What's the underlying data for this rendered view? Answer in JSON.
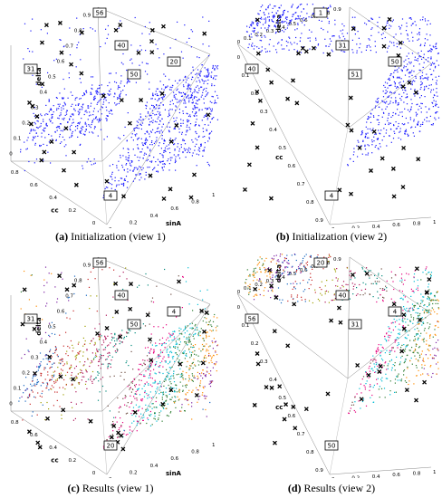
{
  "chart_data": [
    {
      "type": "scatter",
      "panel": "a",
      "caption_letter": "(a)",
      "caption_text": " Initialization (view 1)",
      "xlabel": "cc",
      "ylabel": "delta",
      "zlabel": "sinA",
      "axis_range": [
        0,
        1
      ],
      "x_ticks": [
        "0.8",
        "0.6",
        "0.4",
        "0.2",
        "0"
      ],
      "y_ticks": [
        "0",
        "0.2",
        "0.4",
        "0.6",
        "0.8",
        "1"
      ],
      "z_ticks": [
        "0.9",
        "0.8",
        "0.7",
        "0.6",
        "0.5",
        "0.4",
        "0.3",
        "0.2",
        "0.1",
        "0"
      ],
      "point_color": "#1a1aff",
      "centroid_labels": [
        "56",
        "40",
        "31",
        "50",
        "20",
        "4"
      ]
    },
    {
      "type": "scatter",
      "panel": "b",
      "caption_letter": "(b)",
      "caption_text": " Initialization (view 2)",
      "xlabel": "cc",
      "ylabel": "delta",
      "zlabel": "sinA",
      "axis_range": [
        0,
        1
      ],
      "x_ticks": [
        "0",
        "0.1",
        "0.2",
        "0.3",
        "0.4",
        "0.5",
        "0.6",
        "0.7",
        "0.8",
        "0.9"
      ],
      "y_ticks": [
        "0",
        "0.2",
        "0.4",
        "0.6",
        "0.8",
        "1"
      ],
      "z_ticks": [
        "0.9",
        "0.8",
        "0.7",
        "0.6",
        "0.5",
        "0.4",
        "0.3",
        "0.2",
        "0.1",
        "0"
      ],
      "point_color": "#1a1aff",
      "centroid_labels": [
        "1",
        "31",
        "40",
        "51",
        "50",
        "4"
      ]
    },
    {
      "type": "scatter",
      "panel": "c",
      "caption_letter": "(c)",
      "caption_text": " Results (view 1)",
      "xlabel": "cc",
      "ylabel": "delta",
      "zlabel": "sinA",
      "axis_range": [
        0,
        1
      ],
      "x_ticks": [
        "0.8",
        "0.6",
        "0.4",
        "0.2",
        "0"
      ],
      "y_ticks": [
        "0",
        "0.2",
        "0.4",
        "0.6",
        "0.8",
        "1"
      ],
      "z_ticks": [
        "0.9",
        "0.8",
        "0.7",
        "0.6",
        "0.5",
        "0.4",
        "0.3",
        "0.2",
        "0.1",
        "0"
      ],
      "point_palette": [
        "#e6007e",
        "#00bcd4",
        "#2e7d32",
        "#ff8c00",
        "#7b1fa2",
        "#1565c0",
        "#c62828",
        "#9e9e00",
        "#ad1457",
        "#00897b",
        "#6d4c41"
      ],
      "centroid_labels": [
        "56",
        "40",
        "31",
        "50",
        "4",
        "20"
      ]
    },
    {
      "type": "scatter",
      "panel": "d",
      "caption_letter": "(d)",
      "caption_text": " Results (view 2)",
      "xlabel": "cc",
      "ylabel": "delta",
      "zlabel": "sinA",
      "axis_range": [
        0,
        1
      ],
      "x_ticks": [
        "0",
        "0.1",
        "0.2",
        "0.3",
        "0.4",
        "0.5",
        "0.6",
        "0.7",
        "0.8",
        "0.9"
      ],
      "y_ticks": [
        "0",
        "0.2",
        "0.4",
        "0.6",
        "0.8",
        "1"
      ],
      "z_ticks": [
        "0.9",
        "0.8",
        "0.7",
        "0.6",
        "0.5",
        "0.4",
        "0.3",
        "0.2",
        "0.1",
        "0"
      ],
      "point_palette": [
        "#e6007e",
        "#00bcd4",
        "#2e7d32",
        "#ff8c00",
        "#7b1fa2",
        "#1565c0",
        "#c62828",
        "#9e9e00",
        "#ad1457",
        "#00897b",
        "#6d4c41"
      ],
      "centroid_labels": [
        "20",
        "40",
        "56",
        "31",
        "4",
        "50"
      ]
    }
  ]
}
